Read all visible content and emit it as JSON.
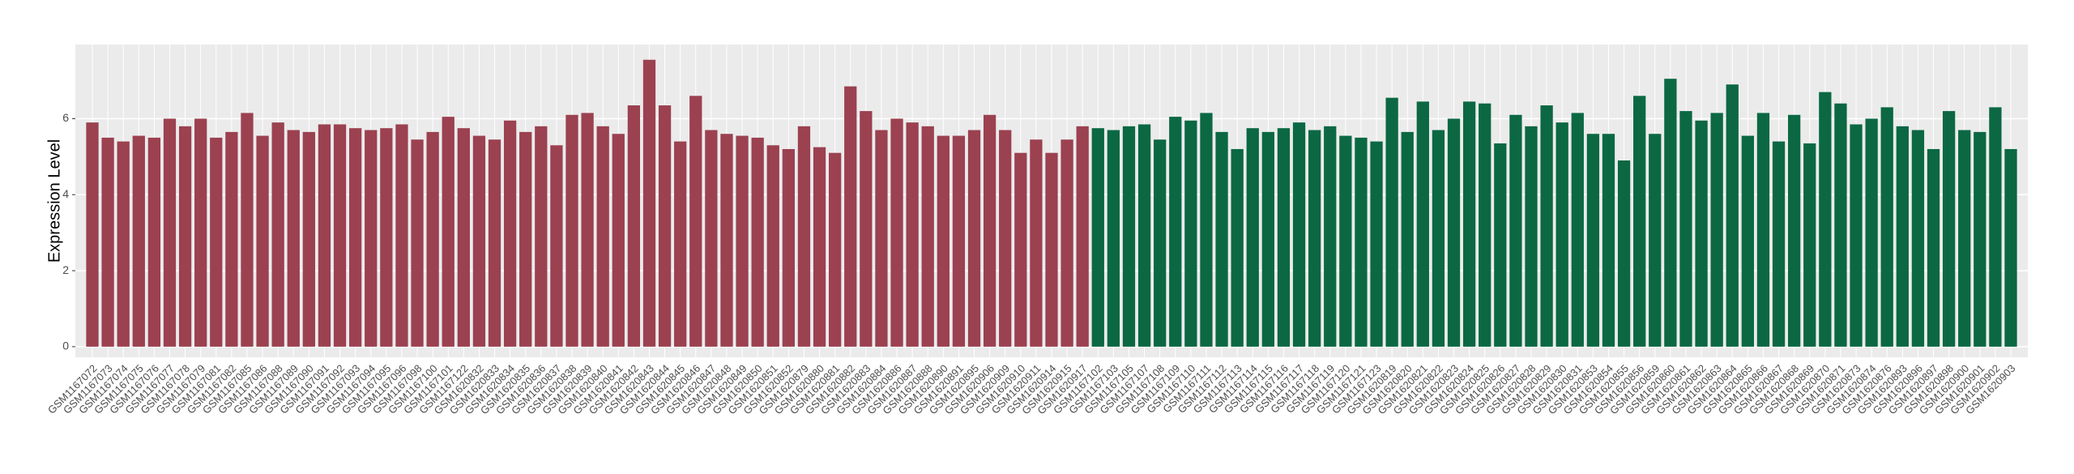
{
  "chart_data": {
    "type": "bar",
    "y_label": "Expression Level",
    "categories": [
      "GSM1167072",
      "GSM1167073",
      "GSM1167074",
      "GSM1167075",
      "GSM1167076",
      "GSM1167077",
      "GSM1167078",
      "GSM1167079",
      "GSM1167081",
      "GSM1167082",
      "GSM1167085",
      "GSM1167086",
      "GSM1167088",
      "GSM1167089",
      "GSM1167090",
      "GSM1167091",
      "GSM1167092",
      "GSM1167093",
      "GSM1167094",
      "GSM1167095",
      "GSM1167096",
      "GSM1167098",
      "GSM1167100",
      "GSM1167101",
      "GSM1167122",
      "GSM1620832",
      "GSM1620833",
      "GSM1620834",
      "GSM1620835",
      "GSM1620836",
      "GSM1620837",
      "GSM1620838",
      "GSM1620839",
      "GSM1620840",
      "GSM1620841",
      "GSM1620842",
      "GSM1620843",
      "GSM1620844",
      "GSM1620845",
      "GSM1620846",
      "GSM1620847",
      "GSM1620848",
      "GSM1620849",
      "GSM1620850",
      "GSM1620851",
      "GSM1620852",
      "GSM1620879",
      "GSM1620880",
      "GSM1620881",
      "GSM1620882",
      "GSM1620883",
      "GSM1620884",
      "GSM1620886",
      "GSM1620887",
      "GSM1620888",
      "GSM1620890",
      "GSM1620891",
      "GSM1620895",
      "GSM1620906",
      "GSM1620909",
      "GSM1620910",
      "GSM1620911",
      "GSM1620914",
      "GSM1620915",
      "GSM1620917",
      "GSM1167102",
      "GSM1167103",
      "GSM1167105",
      "GSM1167107",
      "GSM1167108",
      "GSM1167109",
      "GSM1167110",
      "GSM1167111",
      "GSM1167112",
      "GSM1167113",
      "GSM1167114",
      "GSM1167115",
      "GSM1167116",
      "GSM1167117",
      "GSM1167118",
      "GSM1167119",
      "GSM1167120",
      "GSM1167121",
      "GSM1167123",
      "GSM1620819",
      "GSM1620820",
      "GSM1620821",
      "GSM1620822",
      "GSM1620823",
      "GSM1620824",
      "GSM1620825",
      "GSM1620826",
      "GSM1620827",
      "GSM1620828",
      "GSM1620829",
      "GSM1620830",
      "GSM1620831",
      "GSM1620853",
      "GSM1620854",
      "GSM1620855",
      "GSM1620856",
      "GSM1620859",
      "GSM1620860",
      "GSM1620861",
      "GSM1620862",
      "GSM1620863",
      "GSM1620864",
      "GSM1620865",
      "GSM1620866",
      "GSM1620867",
      "GSM1620868",
      "GSM1620869",
      "GSM1620870",
      "GSM1620871",
      "GSM1620873",
      "GSM1620874",
      "GSM1620876",
      "GSM1620893",
      "GSM1620896",
      "GSM1620897",
      "GSM1620898",
      "GSM1620900",
      "GSM1620901",
      "GSM1620902",
      "GSM1620903"
    ],
    "series": [
      {
        "color": "#9b4150",
        "values": [
          5.9,
          5.5,
          5.4,
          5.55,
          5.5,
          6.0,
          5.8,
          6.0,
          5.5,
          5.65,
          6.15,
          5.55,
          5.9,
          5.7,
          5.65,
          5.85,
          5.85,
          5.75,
          5.7,
          5.75,
          5.85,
          5.45,
          5.65,
          6.05,
          5.75,
          5.55,
          5.45,
          5.95,
          5.65,
          5.8,
          5.3,
          6.1,
          6.15,
          5.8,
          5.6,
          6.35,
          7.55,
          6.35,
          5.4,
          6.6,
          5.7,
          5.6,
          5.55,
          5.5,
          5.3,
          5.2,
          5.8,
          5.25,
          5.1,
          6.85,
          6.2,
          5.7,
          6.0,
          5.9,
          5.8,
          5.55,
          5.55,
          5.7,
          6.1,
          5.7,
          5.1,
          5.45,
          5.1,
          5.45,
          5.8,
          null,
          null,
          null,
          null,
          null,
          null,
          null,
          null,
          null,
          null,
          null,
          null,
          null,
          null,
          null,
          null,
          null,
          null,
          null,
          null,
          null,
          null,
          null,
          null,
          null,
          null,
          null,
          null,
          null,
          null,
          null,
          null,
          null,
          null,
          null,
          null,
          null,
          null,
          null,
          null,
          null,
          null,
          null,
          null,
          null,
          null,
          null,
          null,
          null,
          null,
          null,
          null,
          null,
          null,
          null,
          null,
          null,
          null,
          null,
          null
        ]
      },
      {
        "color": "#0b6843",
        "values": [
          null,
          null,
          null,
          null,
          null,
          null,
          null,
          null,
          null,
          null,
          null,
          null,
          null,
          null,
          null,
          null,
          null,
          null,
          null,
          null,
          null,
          null,
          null,
          null,
          null,
          null,
          null,
          null,
          null,
          null,
          null,
          null,
          null,
          null,
          null,
          null,
          null,
          null,
          null,
          null,
          null,
          null,
          null,
          null,
          null,
          null,
          null,
          null,
          null,
          null,
          null,
          null,
          null,
          null,
          null,
          null,
          null,
          null,
          null,
          null,
          null,
          null,
          null,
          null,
          null,
          5.75,
          5.7,
          5.8,
          5.85,
          5.45,
          6.05,
          5.95,
          6.15,
          5.65,
          5.2,
          5.75,
          5.65,
          5.75,
          5.9,
          5.7,
          5.8,
          5.55,
          5.5,
          5.4,
          6.55,
          5.65,
          6.45,
          5.7,
          6.0,
          6.45,
          6.4,
          5.35,
          6.1,
          5.8,
          6.35,
          5.9,
          6.15,
          5.6,
          5.6,
          4.9,
          6.6,
          5.6,
          7.05,
          6.2,
          5.95,
          6.15,
          6.9,
          5.55,
          6.15,
          5.4,
          6.1,
          5.35,
          6.7,
          6.4,
          5.85,
          6.0,
          6.3,
          5.8,
          5.7,
          5.2,
          6.2,
          5.7,
          5.65,
          6.3,
          5.2
        ]
      }
    ],
    "ylim": [
      -0.28,
      7.95
    ],
    "yticks": [
      0,
      2,
      4,
      6
    ],
    "grid": true
  }
}
